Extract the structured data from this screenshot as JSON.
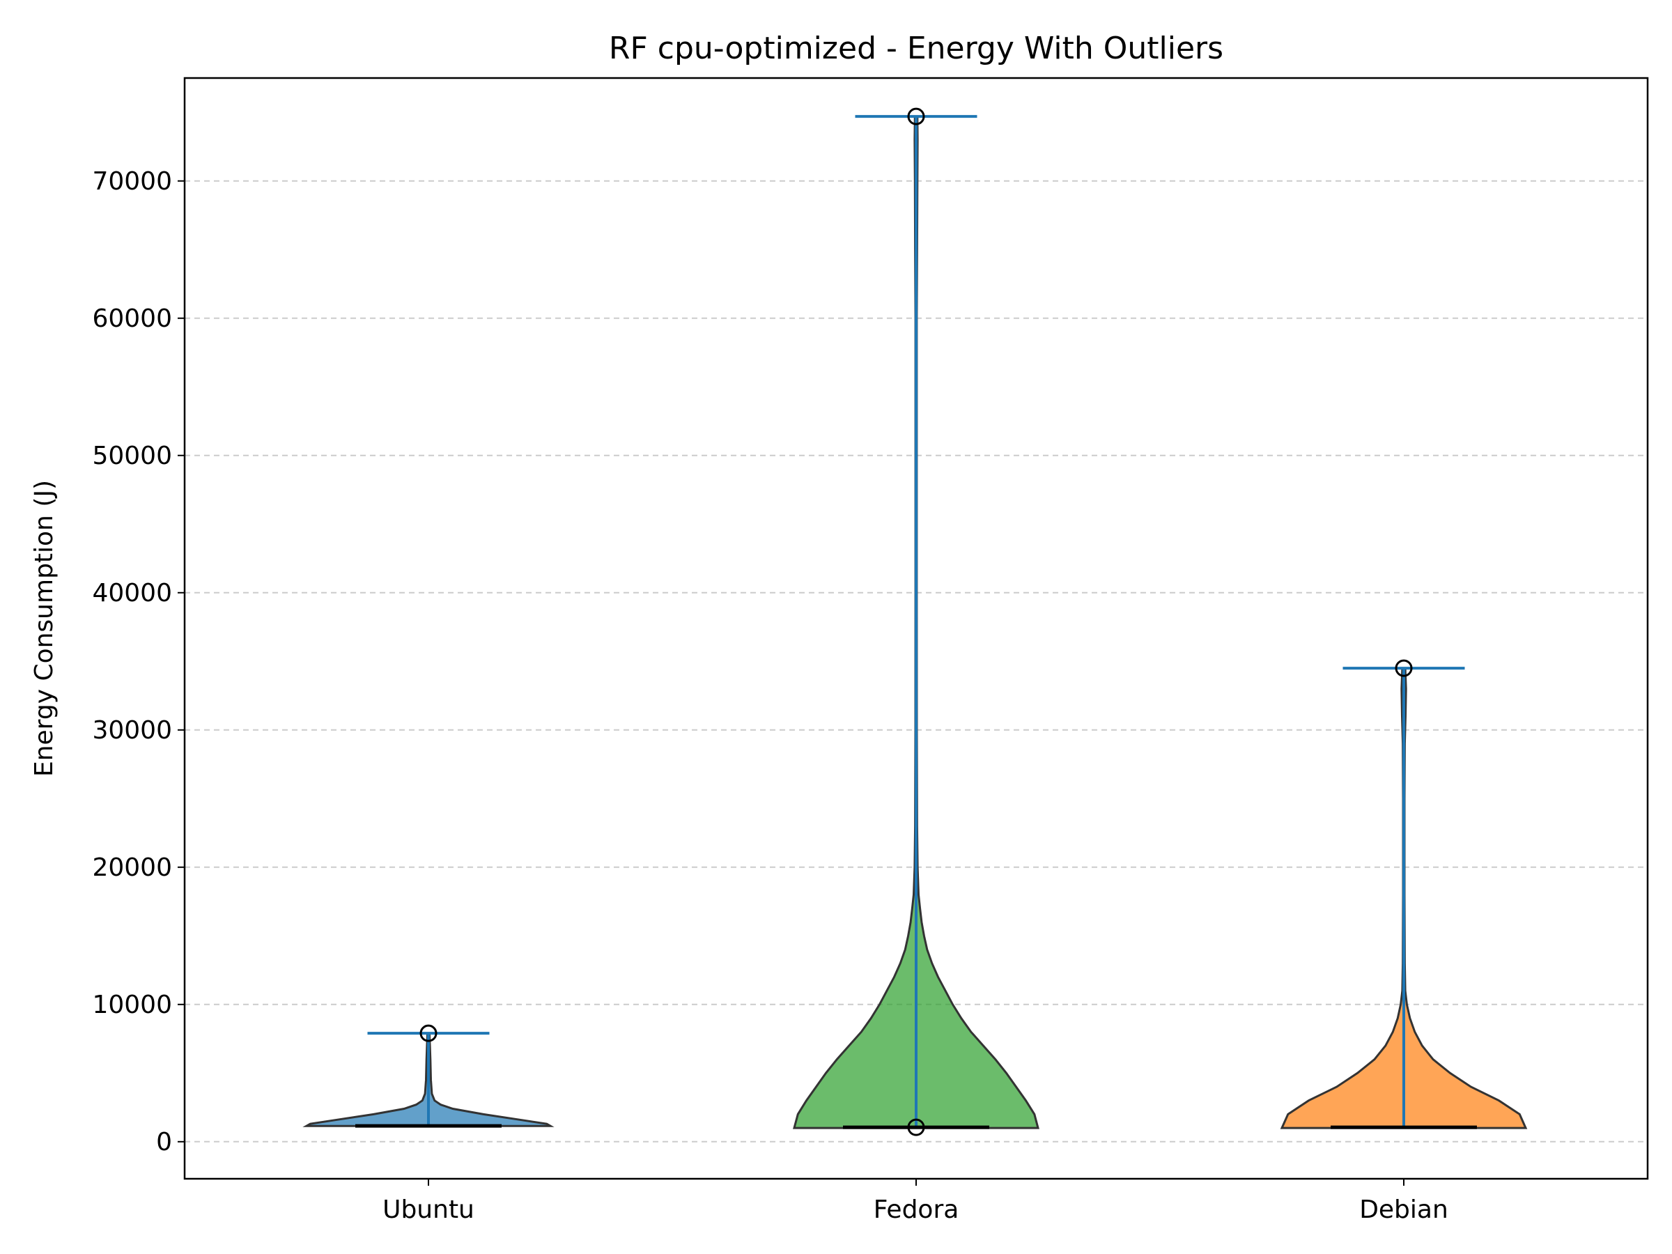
{
  "chart_data": {
    "type": "violin",
    "title": "RF cpu-optimized - Energy With Outliers",
    "xlabel": "",
    "ylabel": "Energy Consumption (J)",
    "ylim": [
      -2700,
      77500
    ],
    "yticks": [
      0,
      10000,
      20000,
      30000,
      40000,
      50000,
      60000,
      70000
    ],
    "ytick_labels": [
      "0",
      "10000",
      "20000",
      "30000",
      "40000",
      "50000",
      "60000",
      "70000"
    ],
    "grid": {
      "y": true,
      "style": "dashed"
    },
    "categories": [
      "Ubuntu",
      "Fedora",
      "Debian"
    ],
    "series": [
      {
        "category": "Ubuntu",
        "color": "#1f77b4",
        "min": 1150,
        "max": 7900,
        "median": 1150,
        "outliers": [
          7900
        ],
        "density": [
          [
            1150,
            1.0
          ],
          [
            1300,
            0.97
          ],
          [
            1600,
            0.75
          ],
          [
            2000,
            0.45
          ],
          [
            2400,
            0.2
          ],
          [
            2700,
            0.1
          ],
          [
            3000,
            0.05
          ],
          [
            3500,
            0.028
          ],
          [
            4500,
            0.02
          ],
          [
            6000,
            0.016
          ],
          [
            7000,
            0.012
          ],
          [
            7900,
            0.008
          ]
        ]
      },
      {
        "category": "Fedora",
        "color": "#2ca02c",
        "min": 1000,
        "max": 74700,
        "median": 1050,
        "outliers": [
          1050,
          74700
        ],
        "density": [
          [
            1000,
            1.0
          ],
          [
            2000,
            0.97
          ],
          [
            3000,
            0.9
          ],
          [
            4000,
            0.82
          ],
          [
            5000,
            0.74
          ],
          [
            6000,
            0.65
          ],
          [
            7000,
            0.55
          ],
          [
            8000,
            0.45
          ],
          [
            9000,
            0.37
          ],
          [
            10000,
            0.3
          ],
          [
            11000,
            0.24
          ],
          [
            12000,
            0.18
          ],
          [
            13000,
            0.13
          ],
          [
            14000,
            0.09
          ],
          [
            15000,
            0.065
          ],
          [
            16000,
            0.045
          ],
          [
            17000,
            0.032
          ],
          [
            18000,
            0.02
          ],
          [
            20000,
            0.012
          ],
          [
            23000,
            0.008
          ],
          [
            30000,
            0.006
          ],
          [
            40000,
            0.005
          ],
          [
            50000,
            0.005
          ],
          [
            60000,
            0.005
          ],
          [
            65000,
            0.008
          ],
          [
            70000,
            0.01
          ],
          [
            73000,
            0.012
          ],
          [
            74700,
            0.01
          ]
        ]
      },
      {
        "category": "Debian",
        "color": "#ff7f0e",
        "min": 1000,
        "max": 34500,
        "median": 1050,
        "outliers": [
          34500
        ],
        "density": [
          [
            1000,
            1.0
          ],
          [
            2000,
            0.95
          ],
          [
            3000,
            0.78
          ],
          [
            4000,
            0.55
          ],
          [
            5000,
            0.38
          ],
          [
            6000,
            0.24
          ],
          [
            7000,
            0.15
          ],
          [
            8000,
            0.09
          ],
          [
            9000,
            0.05
          ],
          [
            10000,
            0.025
          ],
          [
            11000,
            0.012
          ],
          [
            13000,
            0.008
          ],
          [
            18000,
            0.006
          ],
          [
            25000,
            0.006
          ],
          [
            29000,
            0.008
          ],
          [
            31000,
            0.014
          ],
          [
            33000,
            0.018
          ],
          [
            34500,
            0.012
          ]
        ]
      }
    ]
  }
}
